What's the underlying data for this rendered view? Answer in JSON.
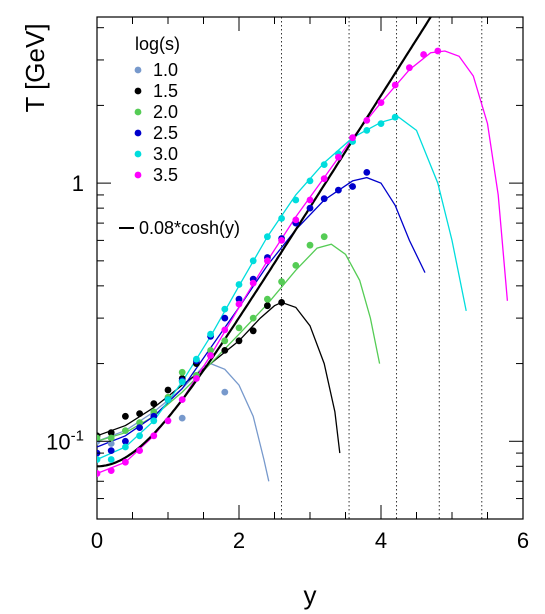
{
  "chart_data": {
    "type": "line",
    "xlabel": "y",
    "ylabel": "T [GeV]",
    "xlim": [
      0,
      6
    ],
    "ylim": [
      0.05,
      4.4
    ],
    "yscale": "log",
    "grid": false,
    "x_ticks": [
      "0",
      "2",
      "4",
      "6"
    ],
    "y_ticks": [
      {
        "value": 0.1,
        "base": "10",
        "exp": "-1"
      },
      {
        "value": 1,
        "base": "1",
        "exp": ""
      }
    ],
    "legend": {
      "placement": "top-left",
      "title": "log(s)",
      "curve_label": "0.08*cosh(y)"
    },
    "reference_curve": {
      "label": "0.08*cosh(y)",
      "coefficient": 0.08,
      "color": "#000000"
    },
    "vertical_lines_x": [
      2.6,
      3.55,
      4.22,
      4.82,
      5.42
    ],
    "series": [
      {
        "name": "1.0",
        "color": "#7799cc",
        "points": [
          [
            0,
            0.1
          ],
          [
            0.2,
            0.098
          ],
          [
            1.2,
            0.123
          ],
          [
            1.8,
            0.155
          ]
        ],
        "curve": [
          [
            0,
            0.1
          ],
          [
            0.4,
            0.11
          ],
          [
            0.8,
            0.13
          ],
          [
            1.2,
            0.16
          ],
          [
            1.5,
            0.195
          ],
          [
            1.6,
            0.2
          ],
          [
            1.8,
            0.19
          ],
          [
            2.0,
            0.165
          ],
          [
            2.2,
            0.125
          ],
          [
            2.35,
            0.085
          ],
          [
            2.42,
            0.07
          ]
        ]
      },
      {
        "name": "1.5",
        "color": "#000000",
        "points": [
          [
            0,
            0.105
          ],
          [
            0.2,
            0.108
          ],
          [
            0.4,
            0.125
          ],
          [
            0.6,
            0.128
          ],
          [
            0.8,
            0.14
          ],
          [
            1.0,
            0.158
          ],
          [
            1.2,
            0.175
          ],
          [
            1.4,
            0.2
          ],
          [
            1.6,
            0.215
          ],
          [
            1.8,
            0.225
          ],
          [
            2.0,
            0.245
          ],
          [
            2.2,
            0.268
          ],
          [
            2.4,
            0.335
          ],
          [
            2.6,
            0.345
          ]
        ],
        "curve": [
          [
            0,
            0.105
          ],
          [
            0.4,
            0.115
          ],
          [
            0.8,
            0.135
          ],
          [
            1.2,
            0.165
          ],
          [
            1.6,
            0.2
          ],
          [
            2.0,
            0.245
          ],
          [
            2.3,
            0.3
          ],
          [
            2.5,
            0.335
          ],
          [
            2.6,
            0.345
          ],
          [
            2.8,
            0.33
          ],
          [
            3.0,
            0.28
          ],
          [
            3.2,
            0.2
          ],
          [
            3.35,
            0.13
          ],
          [
            3.42,
            0.09
          ]
        ]
      },
      {
        "name": "2.0",
        "color": "#55cc55",
        "points": [
          [
            0,
            0.103
          ],
          [
            0.2,
            0.103
          ],
          [
            0.4,
            0.11
          ],
          [
            0.6,
            0.118
          ],
          [
            0.8,
            0.13
          ],
          [
            1.0,
            0.148
          ],
          [
            1.2,
            0.185
          ],
          [
            1.4,
            0.18
          ],
          [
            1.6,
            0.225
          ],
          [
            1.8,
            0.245
          ],
          [
            2.0,
            0.275
          ],
          [
            2.2,
            0.3
          ],
          [
            2.4,
            0.355
          ],
          [
            2.6,
            0.415
          ],
          [
            2.8,
            0.48
          ],
          [
            3.0,
            0.575
          ],
          [
            3.2,
            0.62
          ]
        ],
        "curve": [
          [
            0,
            0.1
          ],
          [
            0.4,
            0.108
          ],
          [
            0.8,
            0.125
          ],
          [
            1.2,
            0.155
          ],
          [
            1.6,
            0.2
          ],
          [
            2.0,
            0.26
          ],
          [
            2.4,
            0.34
          ],
          [
            2.8,
            0.46
          ],
          [
            3.1,
            0.56
          ],
          [
            3.3,
            0.58
          ],
          [
            3.5,
            0.53
          ],
          [
            3.7,
            0.42
          ],
          [
            3.85,
            0.3
          ],
          [
            3.98,
            0.2
          ]
        ]
      },
      {
        "name": "2.5",
        "color": "#0000cc",
        "points": [
          [
            0,
            0.09
          ],
          [
            0.2,
            0.092
          ],
          [
            0.4,
            0.1
          ],
          [
            0.6,
            0.113
          ],
          [
            0.8,
            0.125
          ],
          [
            1.0,
            0.145
          ],
          [
            1.2,
            0.172
          ],
          [
            1.4,
            0.205
          ],
          [
            1.6,
            0.255
          ],
          [
            1.8,
            0.3
          ],
          [
            2.0,
            0.355
          ],
          [
            2.2,
            0.425
          ],
          [
            2.4,
            0.515
          ],
          [
            2.6,
            0.61
          ],
          [
            2.8,
            0.7
          ],
          [
            3.0,
            0.8
          ],
          [
            3.2,
            0.87
          ],
          [
            3.4,
            0.94
          ],
          [
            3.6,
            0.97
          ],
          [
            3.8,
            1.1
          ]
        ],
        "curve": [
          [
            0,
            0.095
          ],
          [
            0.4,
            0.105
          ],
          [
            0.8,
            0.125
          ],
          [
            1.2,
            0.16
          ],
          [
            1.6,
            0.23
          ],
          [
            2.0,
            0.33
          ],
          [
            2.4,
            0.48
          ],
          [
            2.8,
            0.66
          ],
          [
            3.2,
            0.86
          ],
          [
            3.6,
            1.02
          ],
          [
            3.8,
            1.05
          ],
          [
            4.0,
            1.0
          ],
          [
            4.2,
            0.82
          ],
          [
            4.4,
            0.6
          ],
          [
            4.62,
            0.45
          ]
        ]
      },
      {
        "name": "3.0",
        "color": "#00dddd",
        "points": [
          [
            0,
            0.085
          ],
          [
            0.2,
            0.085
          ],
          [
            0.4,
            0.095
          ],
          [
            0.6,
            0.105
          ],
          [
            0.8,
            0.12
          ],
          [
            1.0,
            0.145
          ],
          [
            1.2,
            0.17
          ],
          [
            1.4,
            0.208
          ],
          [
            1.6,
            0.26
          ],
          [
            1.8,
            0.325
          ],
          [
            2.0,
            0.405
          ],
          [
            2.2,
            0.5
          ],
          [
            2.4,
            0.62
          ],
          [
            2.6,
            0.73
          ],
          [
            2.8,
            0.86
          ],
          [
            3.0,
            1.02
          ],
          [
            3.2,
            1.18
          ],
          [
            3.4,
            1.3
          ],
          [
            3.6,
            1.45
          ],
          [
            3.8,
            1.6
          ],
          [
            4.0,
            1.7
          ],
          [
            4.2,
            1.8
          ]
        ],
        "curve": [
          [
            0,
            0.085
          ],
          [
            0.4,
            0.095
          ],
          [
            0.8,
            0.12
          ],
          [
            1.2,
            0.17
          ],
          [
            1.6,
            0.255
          ],
          [
            2.0,
            0.4
          ],
          [
            2.4,
            0.62
          ],
          [
            2.8,
            0.9
          ],
          [
            3.2,
            1.2
          ],
          [
            3.6,
            1.5
          ],
          [
            4.0,
            1.72
          ],
          [
            4.25,
            1.8
          ],
          [
            4.5,
            1.6
          ],
          [
            4.8,
            1.0
          ],
          [
            5.0,
            0.6
          ],
          [
            5.2,
            0.32
          ]
        ]
      },
      {
        "name": "3.5",
        "color": "#ff00ff",
        "points": [
          [
            0,
            0.075
          ],
          [
            0.2,
            0.077
          ],
          [
            0.4,
            0.083
          ],
          [
            0.6,
            0.092
          ],
          [
            0.8,
            0.105
          ],
          [
            1.0,
            0.12
          ],
          [
            1.2,
            0.145
          ],
          [
            1.4,
            0.175
          ],
          [
            1.6,
            0.215
          ],
          [
            1.8,
            0.27
          ],
          [
            2.0,
            0.34
          ],
          [
            2.2,
            0.41
          ],
          [
            2.4,
            0.5
          ],
          [
            2.6,
            0.6
          ],
          [
            2.8,
            0.72
          ],
          [
            3.0,
            0.86
          ],
          [
            3.2,
            1.04
          ],
          [
            3.4,
            1.26
          ],
          [
            3.6,
            1.5
          ],
          [
            3.8,
            1.75
          ],
          [
            4.0,
            2.05
          ],
          [
            4.2,
            2.4
          ],
          [
            4.4,
            2.8
          ],
          [
            4.6,
            3.15
          ],
          [
            4.8,
            3.25
          ]
        ],
        "curve": [
          [
            0,
            0.075
          ],
          [
            0.4,
            0.083
          ],
          [
            0.8,
            0.105
          ],
          [
            1.2,
            0.145
          ],
          [
            1.6,
            0.215
          ],
          [
            2.0,
            0.33
          ],
          [
            2.4,
            0.5
          ],
          [
            2.8,
            0.74
          ],
          [
            3.2,
            1.05
          ],
          [
            3.6,
            1.5
          ],
          [
            4.0,
            2.05
          ],
          [
            4.4,
            2.75
          ],
          [
            4.7,
            3.2
          ],
          [
            4.9,
            3.25
          ],
          [
            5.1,
            3.1
          ],
          [
            5.3,
            2.6
          ],
          [
            5.5,
            1.7
          ],
          [
            5.65,
            0.9
          ],
          [
            5.78,
            0.35
          ]
        ]
      }
    ]
  }
}
